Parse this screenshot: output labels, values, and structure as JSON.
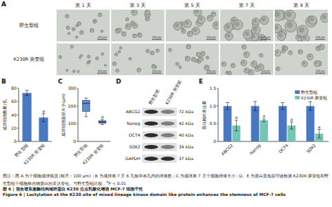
{
  "panels": [
    "A",
    "B",
    "C",
    "D",
    "E"
  ],
  "panel_a": {
    "columns": [
      "第 1 天",
      "第 3 天",
      "第 5 天",
      "第 7 天",
      "第 9 天"
    ],
    "rows": [
      "野生型组",
      "K230R 突变组"
    ],
    "scale_bar": "100 μm"
  },
  "chart_data": [
    {
      "type": "bar",
      "ylabel": "成球细胞数量/孔",
      "categories": [
        "野生型组",
        "K230R 突变组"
      ],
      "values": [
        73,
        36
      ],
      "errors": [
        4,
        6
      ],
      "annotations": [
        null,
        "a"
      ],
      "color": "#4a78c0",
      "ylim": [
        0,
        80
      ],
      "yticks": [
        0,
        20,
        40,
        60,
        80
      ]
    },
    {
      "type": "box",
      "ylabel": "成球细胞直径大小(μm)",
      "categories": [
        "野生型组",
        "K230R 突变组"
      ],
      "min": [
        140,
        95
      ],
      "q1": [
        170,
        103
      ],
      "median": [
        215,
        110
      ],
      "q3": [
        232,
        117
      ],
      "max": [
        245,
        125
      ],
      "annotations": [
        null,
        "a"
      ],
      "color": "#5b8fd4",
      "ylim": [
        0,
        300
      ],
      "yticks": [
        0,
        100,
        200,
        300
      ]
    },
    {
      "type": "bar",
      "ylabel": "蛋白相对表达量",
      "categories": [
        "ABCG2",
        "Nanog",
        "OCT4",
        "SOX2"
      ],
      "series": [
        {
          "name": "野生型组",
          "color": "#4a78c0",
          "values": [
            1,
            1,
            1,
            1
          ],
          "errors": [
            0.1,
            0.13,
            0.1,
            0.12
          ]
        },
        {
          "name": "K230R 突变组",
          "color": "#72c6b4",
          "values": [
            0.45,
            0.6,
            0.45,
            0.22
          ],
          "errors": [
            0.15,
            0.04,
            0.1,
            0.12
          ],
          "annotations": [
            "a",
            "a",
            "a",
            "a"
          ]
        }
      ],
      "legend": "top-right",
      "ylim": [
        0,
        1.5
      ],
      "yticks": [
        0,
        0.5,
        {
          "value": 1,
          "label": "1.0"
        },
        1.5
      ]
    }
  ],
  "panel_d": {
    "columns": [
      "野生型组",
      "K230R 突变组"
    ],
    "rows": [
      {
        "protein": "ABCG2",
        "size": "72 kDa"
      },
      {
        "protein": "Nanog",
        "size": "42 kDa"
      },
      {
        "protein": "OCT4",
        "size": "40 kDa"
      },
      {
        "protein": "SOX2",
        "size": "34 kDa"
      },
      {
        "protein": "GAPDH",
        "size": "37 kDa"
      }
    ]
  },
  "caption": {
    "note": "图注：图 A 为干细胞成球镜况 (标尺：100 μm)；B 为成球第 7 天 6 孔板中各孔内的球体数；C 为成球第 7 天干细胞球体大小；D、E 为蛋白质免疫印迹检测 K230R 突变组和野生型组干细胞标志物蛋白的表达变化。与野生型组比较，",
    "note_sup": "a",
    "note_tail": "P < 0.01",
    "title_cn": "图 6 | 混合谱系激酶结构域样蛋白 K230 位点乳酸化增强 MCF-7 细胞干性",
    "title_en": "Figure 6 | Lactylation at the K230 site of mixed lineage kinase domain like protein enhances the stemness of MCF-7 cells"
  }
}
